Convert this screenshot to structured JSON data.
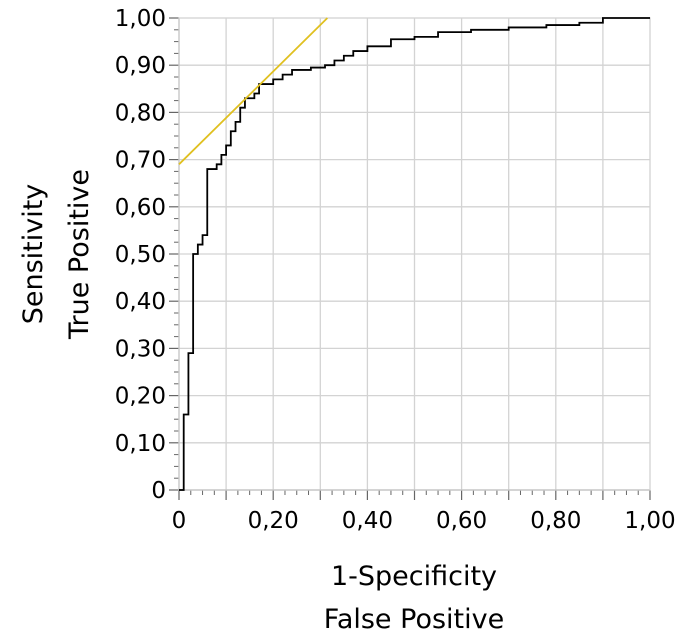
{
  "chart_data": {
    "type": "line",
    "title": "",
    "xlabel": [
      "1-Specificity",
      "False Positive"
    ],
    "ylabel": [
      "Sensitivity",
      "True Positive"
    ],
    "xlim": [
      0,
      1
    ],
    "ylim": [
      0,
      1
    ],
    "xticks": [
      "0",
      "0,20",
      "0,40",
      "0,60",
      "0,80",
      "1,00"
    ],
    "yticks": [
      "0",
      "0,10",
      "0,20",
      "0,30",
      "0,40",
      "0,50",
      "0,60",
      "0,70",
      "0,80",
      "0,90",
      "1,00"
    ],
    "grid": true,
    "colors": {
      "roc": "#000000",
      "tangent": "#e0c020",
      "grid": "#d3d3d3",
      "axis": "#666666"
    },
    "series": [
      {
        "type": "step",
        "points": [
          [
            0.0,
            0.0
          ],
          [
            0.01,
            0.0
          ],
          [
            0.01,
            0.16
          ],
          [
            0.02,
            0.16
          ],
          [
            0.02,
            0.19
          ],
          [
            0.02,
            0.29
          ],
          [
            0.03,
            0.29
          ],
          [
            0.03,
            0.31
          ],
          [
            0.03,
            0.5
          ],
          [
            0.04,
            0.5
          ],
          [
            0.04,
            0.52
          ],
          [
            0.05,
            0.52
          ],
          [
            0.05,
            0.54
          ],
          [
            0.06,
            0.54
          ],
          [
            0.06,
            0.68
          ],
          [
            0.08,
            0.68
          ],
          [
            0.08,
            0.69
          ],
          [
            0.09,
            0.69
          ],
          [
            0.09,
            0.71
          ],
          [
            0.1,
            0.71
          ],
          [
            0.1,
            0.73
          ],
          [
            0.11,
            0.73
          ],
          [
            0.11,
            0.76
          ],
          [
            0.12,
            0.76
          ],
          [
            0.12,
            0.78
          ],
          [
            0.13,
            0.78
          ],
          [
            0.13,
            0.81
          ],
          [
            0.14,
            0.81
          ],
          [
            0.14,
            0.83
          ],
          [
            0.16,
            0.83
          ],
          [
            0.16,
            0.84
          ],
          [
            0.17,
            0.84
          ],
          [
            0.17,
            0.86
          ],
          [
            0.2,
            0.86
          ],
          [
            0.2,
            0.87
          ],
          [
            0.22,
            0.87
          ],
          [
            0.22,
            0.88
          ],
          [
            0.24,
            0.88
          ],
          [
            0.24,
            0.89
          ],
          [
            0.28,
            0.89
          ],
          [
            0.28,
            0.895
          ],
          [
            0.31,
            0.895
          ],
          [
            0.31,
            0.9
          ],
          [
            0.33,
            0.9
          ],
          [
            0.33,
            0.91
          ],
          [
            0.35,
            0.91
          ],
          [
            0.35,
            0.92
          ],
          [
            0.37,
            0.92
          ],
          [
            0.37,
            0.93
          ],
          [
            0.4,
            0.93
          ],
          [
            0.4,
            0.94
          ],
          [
            0.45,
            0.94
          ],
          [
            0.45,
            0.955
          ],
          [
            0.5,
            0.955
          ],
          [
            0.5,
            0.96
          ],
          [
            0.55,
            0.96
          ],
          [
            0.55,
            0.97
          ],
          [
            0.62,
            0.97
          ],
          [
            0.62,
            0.975
          ],
          [
            0.7,
            0.975
          ],
          [
            0.7,
            0.98
          ],
          [
            0.78,
            0.98
          ],
          [
            0.78,
            0.985
          ],
          [
            0.85,
            0.985
          ],
          [
            0.85,
            0.99
          ],
          [
            0.9,
            0.99
          ],
          [
            0.9,
            1.0
          ],
          [
            1.0,
            1.0
          ]
        ]
      },
      {
        "type": "tangent",
        "points": [
          [
            0.0,
            0.69
          ],
          [
            0.315,
            1.0
          ]
        ]
      }
    ]
  }
}
